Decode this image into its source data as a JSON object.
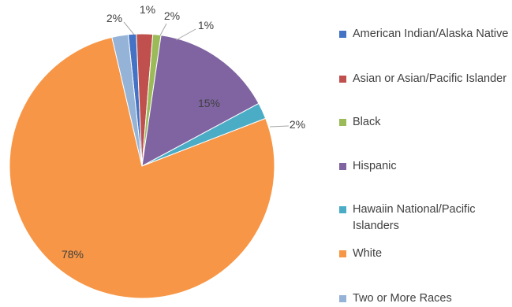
{
  "chart_data": {
    "type": "pie",
    "title": "",
    "slices": [
      {
        "label": "American Indian/Alaska Native",
        "value": 1,
        "data_label": "1%",
        "color": "#4472C4"
      },
      {
        "label": "Asian or Asian/Pacific Islander",
        "value": 2,
        "data_label": "2%",
        "color": "#C0504D"
      },
      {
        "label": "Black",
        "value": 1,
        "data_label": "1%",
        "color": "#9BBB59"
      },
      {
        "label": "Hispanic",
        "value": 15,
        "data_label": "15%",
        "color": "#8064A2"
      },
      {
        "label": "Hawaiin National/Pacific Islanders",
        "value": 2,
        "data_label": "2%",
        "color": "#4BACC6"
      },
      {
        "label": "White",
        "value": 78,
        "data_label": "78%",
        "color": "#F79646"
      },
      {
        "label": "Two or More Races",
        "value": 2,
        "data_label": "2%",
        "color": "#95B3D7"
      }
    ],
    "legend_position": "right"
  }
}
